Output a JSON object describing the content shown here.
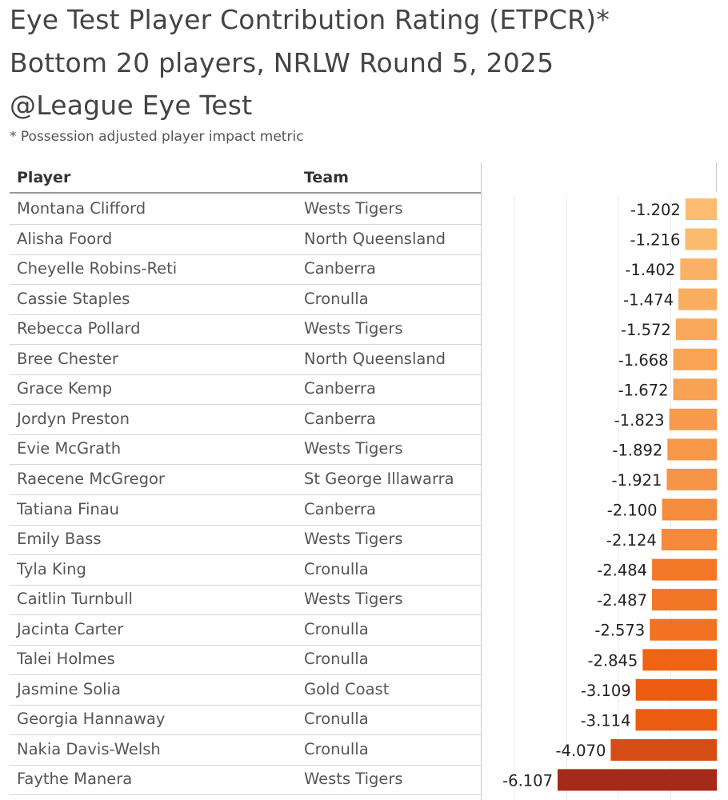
{
  "title_lines": [
    "Eye Test Player Contribution Rating (ETPCR)*",
    "Bottom 20 players, NRLW Round 5, 2025",
    "@League Eye Test"
  ],
  "subtitle": "* Possession adjusted player impact metric",
  "columns": {
    "player": "Player",
    "team": "Team"
  },
  "chart_data": {
    "type": "bar",
    "orientation": "horizontal",
    "title": "Eye Test Player Contribution Rating (ETPCR)*",
    "subtitle": "Bottom 20 players, NRLW Round 5, 2025",
    "xlabel": "",
    "ylabel": "",
    "xlim": [
      -6.107,
      0
    ],
    "grid": true,
    "legend": "none",
    "color_scale": {
      "low": "#a52a1a",
      "mid": "#f06010",
      "high": "#fbbc70"
    },
    "categories": [
      "Montana Clifford",
      "Alisha Foord",
      "Cheyelle Robins-Reti",
      "Cassie Staples",
      "Rebecca Pollard",
      "Bree Chester",
      "Grace Kemp",
      "Jordyn Preston",
      "Evie McGrath",
      "Raecene McGregor",
      "Tatiana Finau",
      "Emily Bass",
      "Tyla King",
      "Caitlin Turnbull",
      "Jacinta Carter",
      "Talei Holmes",
      "Jasmine Solia",
      "Georgia Hannaway",
      "Nakia Davis-Welsh",
      "Faythe Manera"
    ],
    "teams": [
      "Wests Tigers",
      "North Queensland",
      "Canberra",
      "Cronulla",
      "Wests Tigers",
      "North Queensland",
      "Canberra",
      "Canberra",
      "Wests Tigers",
      "St George Illawarra",
      "Canberra",
      "Wests Tigers",
      "Cronulla",
      "Wests Tigers",
      "Cronulla",
      "Cronulla",
      "Gold Coast",
      "Cronulla",
      "Cronulla",
      "Wests Tigers"
    ],
    "values": [
      -1.202,
      -1.216,
      -1.402,
      -1.474,
      -1.572,
      -1.668,
      -1.672,
      -1.823,
      -1.892,
      -1.921,
      -2.1,
      -2.124,
      -2.484,
      -2.487,
      -2.573,
      -2.845,
      -3.109,
      -3.114,
      -4.07,
      -6.107
    ],
    "value_labels": [
      "-1.202",
      "-1.216",
      "-1.402",
      "-1.474",
      "-1.572",
      "-1.668",
      "-1.672",
      "-1.823",
      "-1.892",
      "-1.921",
      "-2.100",
      "-2.124",
      "-2.484",
      "-2.487",
      "-2.573",
      "-2.845",
      "-3.109",
      "-3.114",
      "-4.070",
      "-6.107"
    ]
  }
}
